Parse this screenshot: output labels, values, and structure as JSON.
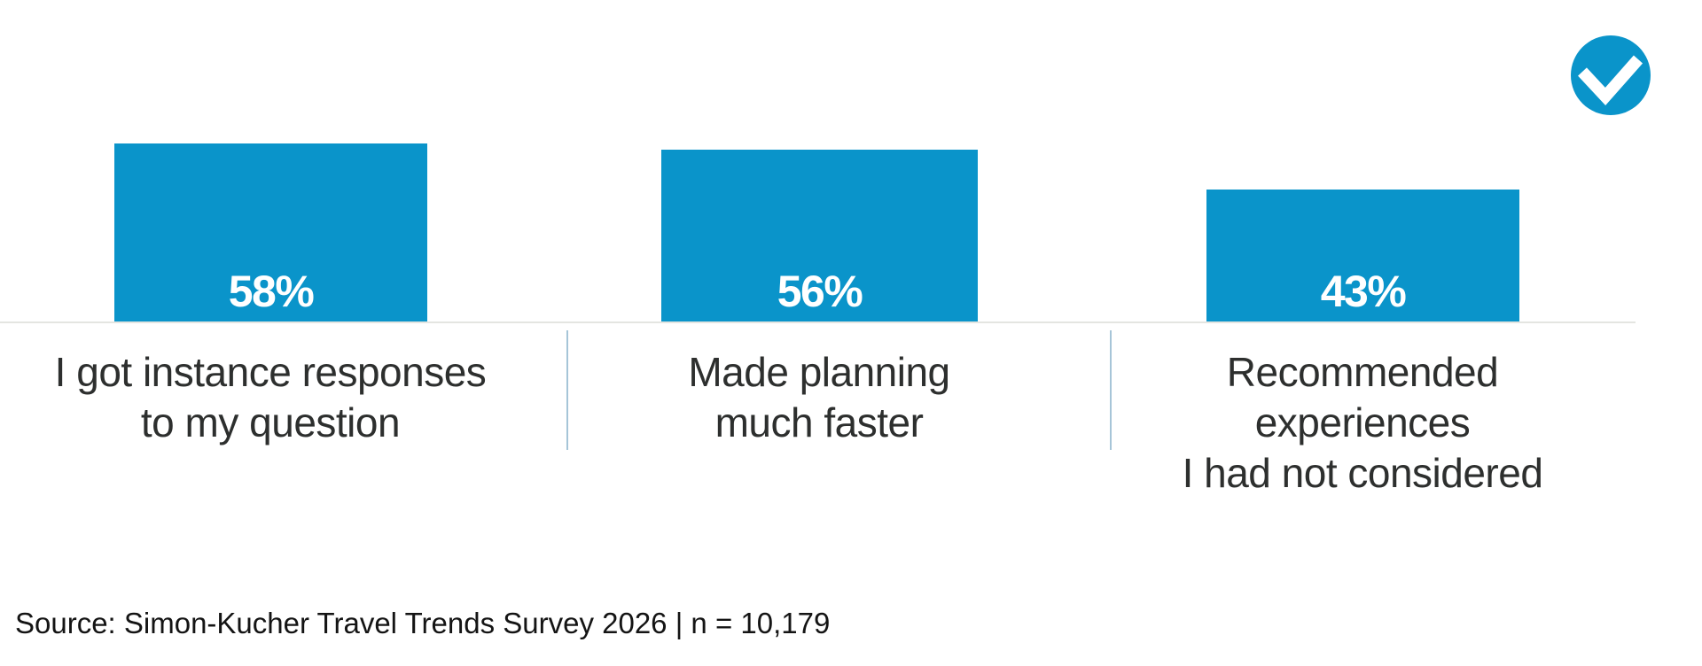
{
  "chart_data": {
    "type": "bar",
    "title": "",
    "categories": [
      "I got instance responses to my question",
      "Made planning much faster",
      "Recommended experiences I had not considered"
    ],
    "category_lines": [
      [
        "I got instance responses",
        "to my question"
      ],
      [
        "Made planning",
        "much faster"
      ],
      [
        "Recommended experiences",
        "I had not considered"
      ]
    ],
    "values": [
      58,
      56,
      43
    ],
    "value_labels": [
      "58%",
      "56%",
      "43%"
    ],
    "ylim": [
      0,
      100
    ],
    "grid": false,
    "legend": false,
    "orientation": "vertical",
    "bar_color": "#0a94ca",
    "value_label_color": "#ffffff",
    "baseline_color": "#e4e5e1",
    "divider_color": "#a6c5d8",
    "category_label_color": "#2d2f2e"
  },
  "badge": {
    "icon": "check-circle-icon",
    "color": "#0a94ca",
    "check_color": "#ffffff"
  },
  "source": {
    "text": "Source: Simon-Kucher Travel Trends Survey 2026 | n = 10,179"
  }
}
